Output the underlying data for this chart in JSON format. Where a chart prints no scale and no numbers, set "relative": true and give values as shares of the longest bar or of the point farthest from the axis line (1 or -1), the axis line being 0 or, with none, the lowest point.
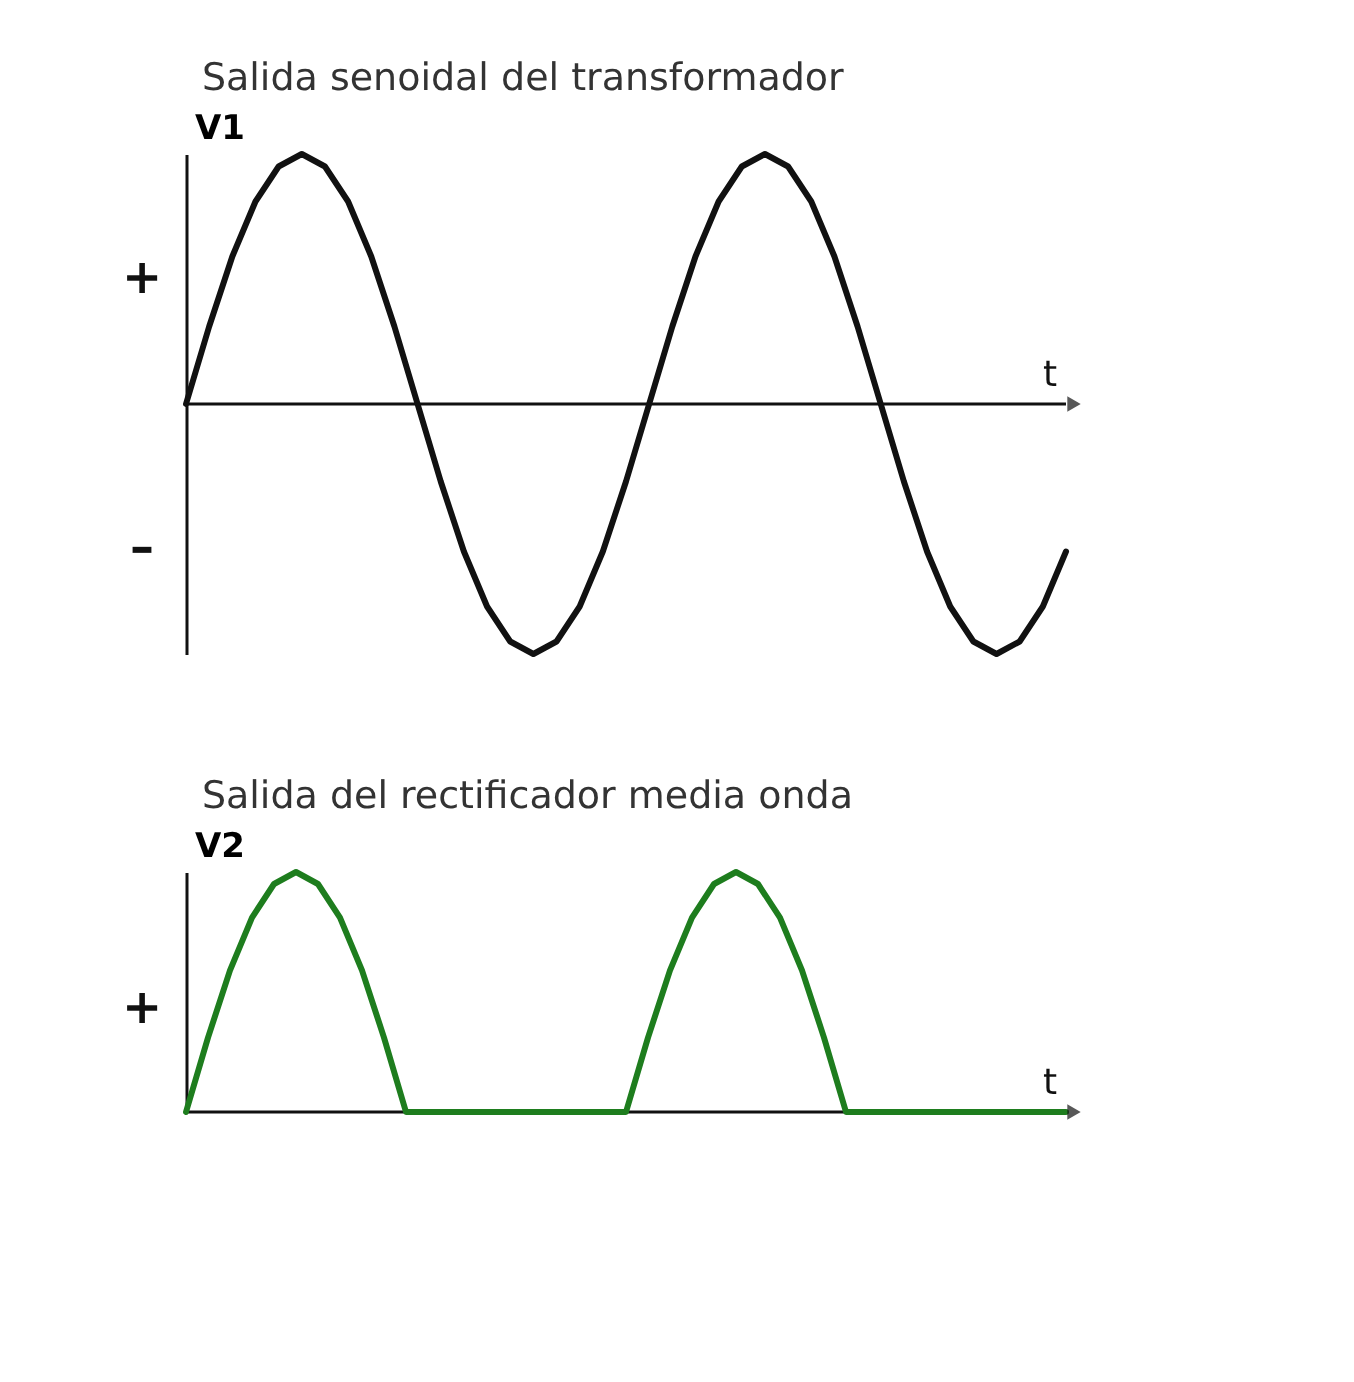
{
  "chart_data": [
    {
      "type": "line",
      "title": "Salida senoidal del transformador",
      "ylabel": "V1",
      "xlabel": "t",
      "relative": true,
      "tick_labels": false,
      "categories": [
        null,
        null,
        null,
        null,
        null,
        null,
        null,
        null,
        null,
        null,
        null,
        null,
        null,
        null,
        null,
        null,
        null,
        null,
        null,
        null,
        null,
        null,
        null,
        null,
        null,
        null,
        null,
        null,
        null,
        null,
        null,
        null,
        null,
        null,
        null,
        null,
        null,
        null,
        null
      ],
      "series": [
        {
          "color": "#111111",
          "values": [
            0,
            0.31,
            0.59,
            0.81,
            0.95,
            1,
            0.95,
            0.81,
            0.59,
            0.31,
            0,
            -0.31,
            -0.59,
            -0.81,
            -0.95,
            -1,
            -0.95,
            -0.81,
            -0.59,
            -0.31,
            0,
            0.31,
            0.59,
            0.81,
            0.95,
            1,
            0.95,
            0.81,
            0.59,
            0.31,
            0,
            -0.31,
            -0.59,
            -0.81,
            -0.95,
            -1,
            -0.95,
            -0.81,
            -0.59
          ]
        }
      ],
      "annotations": [
        "+",
        "–"
      ]
    },
    {
      "type": "line",
      "title": "Salida del rectificador media onda",
      "ylabel": "V2",
      "xlabel": "t",
      "relative": true,
      "tick_labels": false,
      "categories": [
        null,
        null,
        null,
        null,
        null,
        null,
        null,
        null,
        null,
        null,
        null,
        null,
        null,
        null,
        null,
        null,
        null,
        null,
        null,
        null,
        null,
        null,
        null,
        null,
        null,
        null,
        null,
        null,
        null,
        null,
        null,
        null,
        null,
        null,
        null,
        null,
        null,
        null,
        null,
        null,
        null
      ],
      "series": [
        {
          "color": "#1e7d1e",
          "values": [
            0,
            0.31,
            0.59,
            0.81,
            0.95,
            1,
            0.95,
            0.81,
            0.59,
            0.31,
            0,
            0,
            0,
            0,
            0,
            0,
            0,
            0,
            0,
            0,
            0,
            0.31,
            0.59,
            0.81,
            0.95,
            1,
            0.95,
            0.81,
            0.59,
            0.31,
            0,
            0,
            0,
            0,
            0,
            0,
            0,
            0,
            0,
            0,
            0
          ]
        }
      ],
      "annotations": [
        "+"
      ]
    }
  ]
}
